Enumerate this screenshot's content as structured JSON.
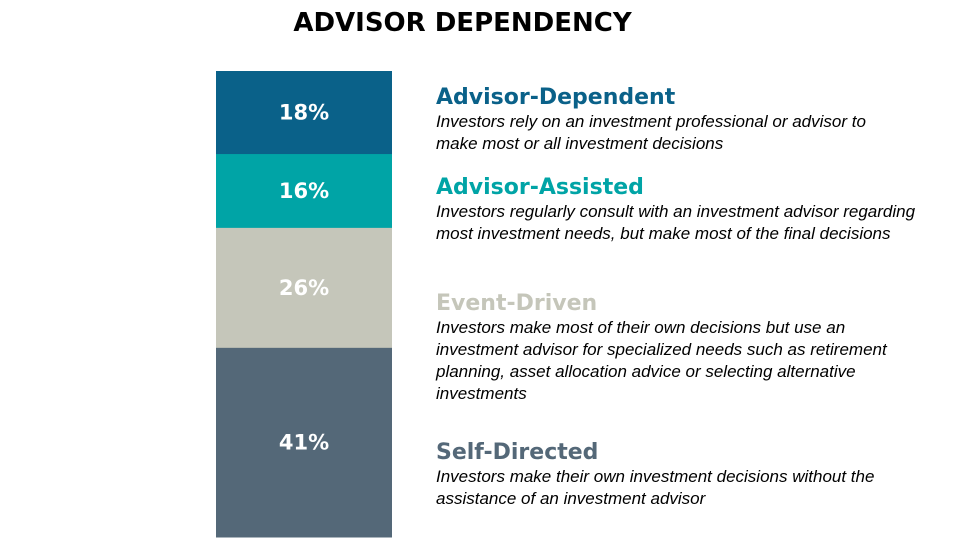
{
  "chart_data": {
    "type": "bar",
    "subtype": "100%-stacked",
    "title": "ADVISOR DEPENDENCY",
    "xlabel": "",
    "ylabel": "",
    "grid": false,
    "legend": "right",
    "series": [
      {
        "name": "Advisor-Dependent",
        "value": 18,
        "label": "18%",
        "color": "#0a6189",
        "description": "Investors rely on an investment professional or advisor to make most or all investment decisions"
      },
      {
        "name": "Advisor-Assisted",
        "value": 16,
        "label": "16%",
        "color": "#00a4a6",
        "description": "Investors regularly consult with an investment advisor regarding most investment needs, but make most of the final decisions"
      },
      {
        "name": "Event-Driven",
        "value": 26,
        "label": "26%",
        "color": "#c5c6ba",
        "description": "Investors make most of their own decisions but use an investment advisor for specialized needs such as retirement planning, asset allocation advice or selecting alternative investments"
      },
      {
        "name": "Self-Directed",
        "value": 41,
        "label": "41%",
        "color": "#546878",
        "description": "Investors make their own investment decisions without the assistance of an investment advisor"
      }
    ]
  }
}
